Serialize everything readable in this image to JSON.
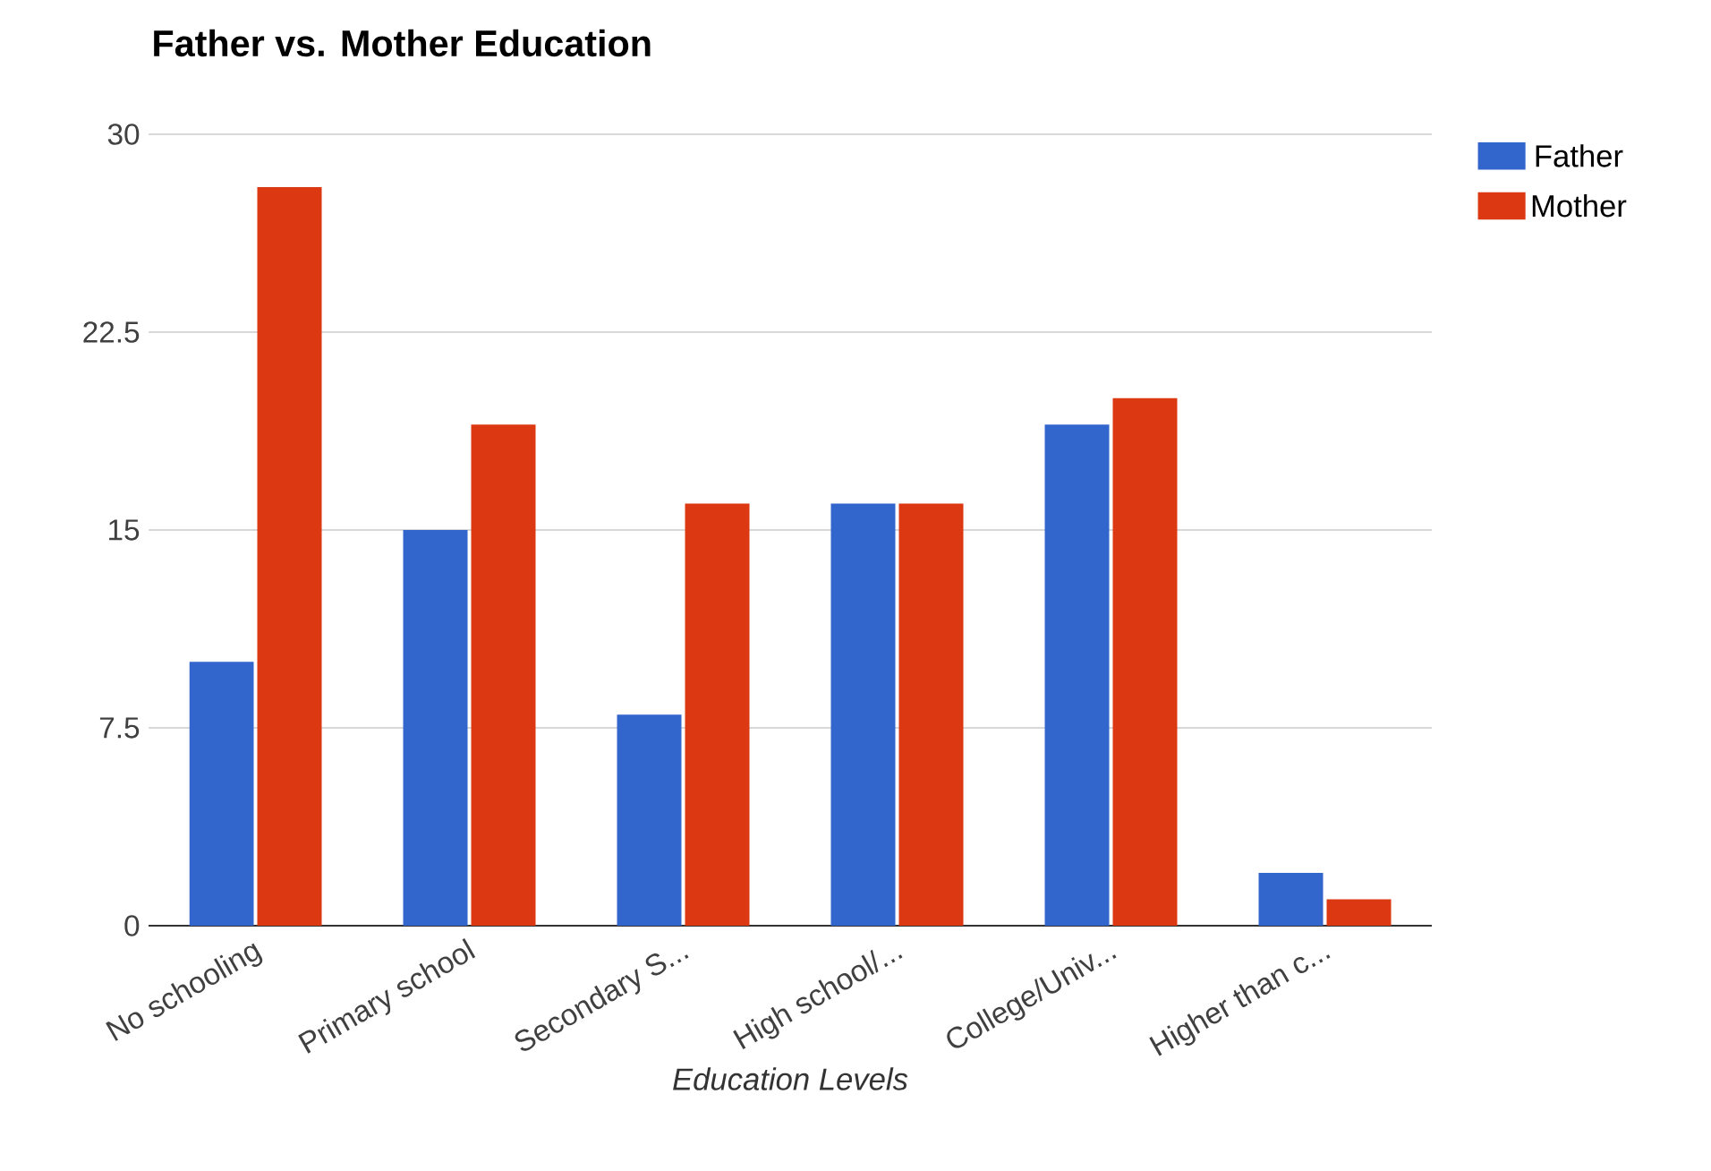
{
  "chart_data": {
    "type": "bar",
    "title": "Father vs. Mother Education",
    "xlabel": "Education Levels",
    "categories": [
      "No schooling",
      "Primary school",
      "Secondary S...",
      "High school/...",
      "College/Univ...",
      "Higher than c..."
    ],
    "series": [
      {
        "name": "Father",
        "color": "#3366cc",
        "values": [
          10,
          15,
          8,
          16,
          19,
          2
        ]
      },
      {
        "name": "Mother",
        "color": "#dc3912",
        "values": [
          28,
          19,
          16,
          16,
          20,
          1
        ]
      }
    ],
    "ylim": [
      0,
      30
    ],
    "yticks": [
      0,
      7.5,
      15,
      22.5,
      30
    ],
    "grid": "y",
    "legend": "right"
  }
}
